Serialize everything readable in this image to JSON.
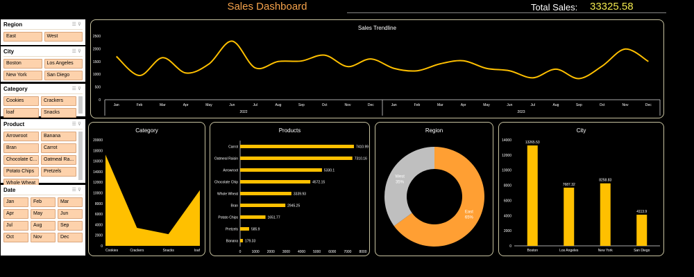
{
  "header": {
    "title": "Sales Dashboard",
    "total_label": "Total Sales:",
    "total_value": "33325.58"
  },
  "slicers": [
    {
      "title": "Region",
      "cols": 2,
      "items": [
        "East",
        "West"
      ]
    },
    {
      "title": "City",
      "cols": 2,
      "items": [
        "Boston",
        "Los Angeles",
        "New York",
        "San Diego"
      ]
    },
    {
      "title": "Category",
      "cols": 2,
      "items": [
        "Cookies",
        "Crackers",
        "loaf",
        "Snacks"
      ]
    },
    {
      "title": "Product",
      "cols": 2,
      "items": [
        "Arrowroot",
        "Banana",
        "Bran",
        "Carrot",
        "Chocolate C...",
        "Oatmeal Ra...",
        "Potato Chips",
        "Pretzels",
        "Whole Wheat"
      ]
    },
    {
      "title": "Date",
      "cols": 3,
      "items": [
        "Jan",
        "Feb",
        "Mar",
        "Apr",
        "May",
        "Jun",
        "Jul",
        "Aug",
        "Sep",
        "Oct",
        "Nov",
        "Dec"
      ]
    }
  ],
  "colors": {
    "accent": "#ffc000",
    "title": "#f4a24b",
    "east": "#ff9f33",
    "west": "#bfbfbf",
    "slicer_button": "#fdd2ac"
  },
  "chart_data": [
    {
      "type": "line",
      "title": "Sales Trendline",
      "years": [
        "2022",
        "2023"
      ],
      "categories": [
        "Jan",
        "Feb",
        "Mar",
        "Apr",
        "May",
        "Jun",
        "Jul",
        "Aug",
        "Sep",
        "Oct",
        "Nov",
        "Dec",
        "Jan",
        "Feb",
        "Mar",
        "Apr",
        "May",
        "Jun",
        "Jul",
        "Aug",
        "Sep",
        "Oct",
        "Nov",
        "Dec"
      ],
      "values": [
        1700,
        950,
        1650,
        1050,
        1400,
        2300,
        1250,
        1500,
        1520,
        1750,
        1300,
        1600,
        1230,
        1135,
        1410,
        1530,
        1230,
        1135,
        860,
        1200,
        830,
        1320,
        1990,
        1500
      ],
      "ylim": [
        0,
        2500
      ],
      "yticks": [
        0,
        500,
        1000,
        1500,
        2000,
        2500
      ]
    },
    {
      "type": "area",
      "title": "Category",
      "categories": [
        "Cookies",
        "Crackers",
        "Snacks",
        "loaf"
      ],
      "values": [
        17200,
        3400,
        2200,
        10500
      ],
      "ylim": [
        0,
        20000
      ],
      "yticks": [
        0,
        2000,
        4000,
        6000,
        8000,
        10000,
        12000,
        14000,
        16000,
        18000,
        20000
      ]
    },
    {
      "type": "bar",
      "orientation": "horizontal",
      "title": "Products",
      "categories": [
        "Carrot",
        "Oatmeal Raisin",
        "Arrowroot",
        "Chocolate Chip",
        "Whole Wheat",
        "Bran",
        "Potato Chips",
        "Pretzels",
        "Banana"
      ],
      "values": [
        7410.99,
        7310.16,
        5330.1,
        4572.15,
        3339.93,
        2945.25,
        1651.77,
        585.9,
        179.33
      ],
      "labels": [
        "7410.99",
        "7310.16",
        "5330.1",
        "4572.15",
        "3339.93",
        "2945.25",
        "1651.77",
        "585.9",
        "179.33"
      ],
      "xlim": [
        0,
        8000
      ],
      "xticks": [
        0,
        1000,
        2000,
        3000,
        4000,
        5000,
        6000,
        7000,
        8000
      ]
    },
    {
      "type": "pie",
      "donut": true,
      "title": "Region",
      "categories": [
        "East",
        "West"
      ],
      "values": [
        65,
        35
      ],
      "labels": [
        "65%",
        "35%"
      ]
    },
    {
      "type": "bar",
      "title": "City",
      "categories": [
        "Boston",
        "Los Angeles",
        "New York",
        "San Diego"
      ],
      "values": [
        13265.53,
        7687.32,
        8258.83,
        4113.9
      ],
      "labels": [
        "13265.53",
        "7687.32",
        "8258.83",
        "4113.9"
      ],
      "ylim": [
        0,
        14000
      ],
      "yticks": [
        0,
        2000,
        4000,
        6000,
        8000,
        10000,
        12000,
        14000
      ]
    }
  ]
}
